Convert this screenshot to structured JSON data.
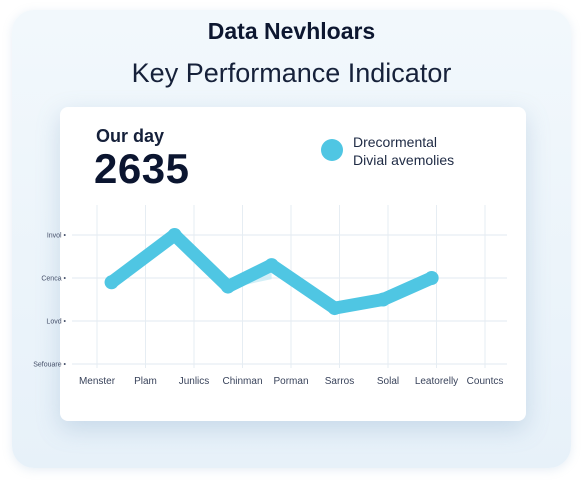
{
  "header": {
    "title": "Data Nevhloars",
    "subtitle": "Key Performance Indicator"
  },
  "kpi": {
    "label": "Our day",
    "value": "2635"
  },
  "legend": {
    "line1": "Drecormental",
    "line2": "Divial avemolies"
  },
  "colors": {
    "series": "#4fc6e3",
    "series_light": "#bfe8f3",
    "grid": "#e6edf3"
  },
  "chart_data": {
    "type": "line",
    "title": "",
    "xlabel": "",
    "ylabel": "",
    "categories": [
      "Menster",
      "Plam",
      "Junlics",
      "Chinman",
      "Porman",
      "Sarros",
      "Solal",
      "Leatorelly",
      "Countcs"
    ],
    "y_tick_labels": [
      "Invol",
      "Cenca",
      "Lovd",
      "Sefouare"
    ],
    "ylim": [
      0,
      3
    ],
    "grid": true,
    "legend_position": "top-right",
    "series": [
      {
        "name": "Drecormental Divial avemolies",
        "x": [
          0.3,
          1.6,
          2.7,
          3.6,
          4.9,
          5.9,
          6.9
        ],
        "values": [
          1.9,
          3.0,
          1.8,
          2.3,
          1.3,
          1.5,
          2.0
        ]
      }
    ]
  }
}
